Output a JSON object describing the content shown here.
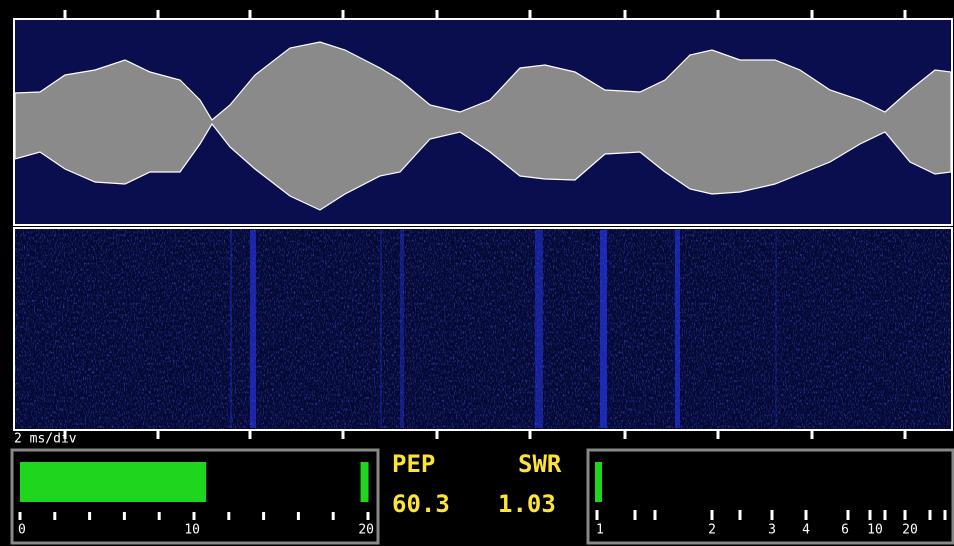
{
  "scope": {
    "timebase": "2 ms/div"
  },
  "power_meter": {
    "scale": [
      0,
      10,
      20
    ],
    "level": 10.7,
    "peak": 19.8
  },
  "readout": {
    "pep_label": "PEP",
    "swr_label": "SWR",
    "pep": 60.3,
    "swr": 1.03
  },
  "swr_meter": {
    "scale": [
      1,
      2,
      3,
      4,
      6,
      10,
      20
    ]
  }
}
